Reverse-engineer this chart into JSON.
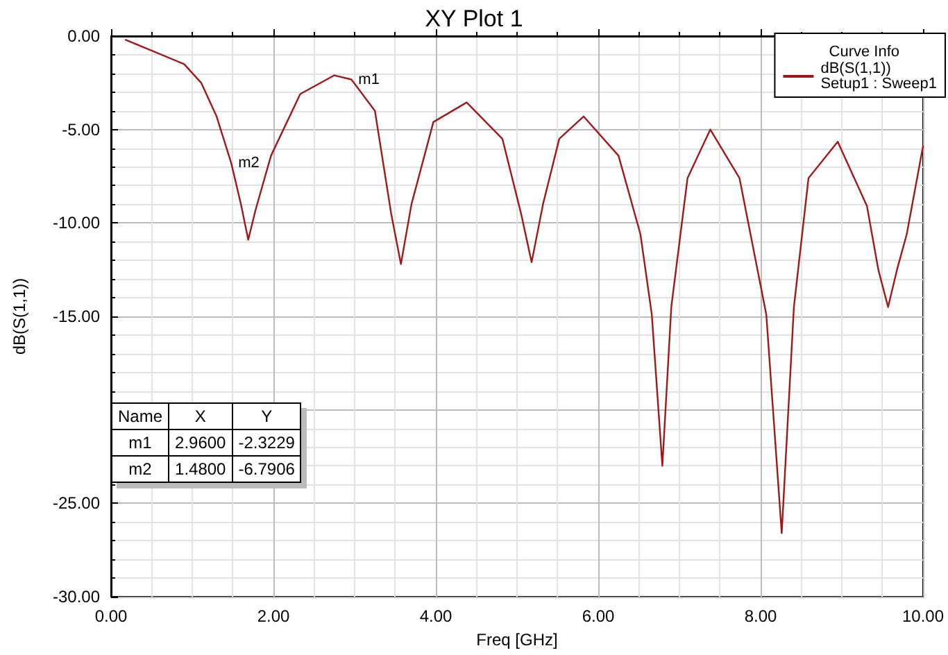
{
  "chart_data": {
    "type": "line",
    "title": "XY Plot 1",
    "xlabel": "Freq [GHz]",
    "ylabel": "dB(S(1,1))",
    "legend_title": "Curve Info",
    "legend": "top right",
    "grid": true,
    "marker": "none",
    "line_style": "solid",
    "xlim": [
      0,
      10
    ],
    "xticks": [
      {
        "value": 0,
        "label": "0.00"
      },
      {
        "value": 2,
        "label": "2.00"
      },
      {
        "value": 4,
        "label": "4.00"
      },
      {
        "value": 6,
        "label": "6.00"
      },
      {
        "value": 8,
        "label": "8.00"
      },
      {
        "value": 10,
        "label": "10.00"
      }
    ],
    "ylim": [
      -30,
      0
    ],
    "yticks": [
      {
        "value": -30,
        "label": "-30.00"
      },
      {
        "value": -25,
        "label": "-25.00"
      },
      {
        "value": -20,
        "label": null
      },
      {
        "value": -15,
        "label": "-15.00"
      },
      {
        "value": -10,
        "label": "-10.00"
      },
      {
        "value": -5,
        "label": "-5.00"
      },
      {
        "value": 0,
        "label": "0.00"
      }
    ],
    "series": [
      {
        "name": "dB(S(1,1))\nSetup1 : Sweep1",
        "color": "#a01818",
        "x": [
          0.18,
          0.9,
          1.11,
          1.3,
          1.48,
          1.6,
          1.69,
          1.78,
          1.97,
          2.33,
          2.75,
          2.96,
          3.25,
          3.45,
          3.57,
          3.7,
          3.97,
          4.38,
          4.82,
          5.05,
          5.18,
          5.32,
          5.52,
          5.82,
          6.25,
          6.52,
          6.66,
          6.79,
          6.9,
          7.1,
          7.38,
          7.74,
          8.07,
          8.26,
          8.41,
          8.59,
          8.95,
          9.31,
          9.45,
          9.57,
          9.68,
          9.8,
          10.0
        ],
        "values": [
          -0.2,
          -1.5,
          -2.5,
          -4.3,
          -6.79,
          -9.0,
          -10.9,
          -9.3,
          -6.4,
          -3.1,
          -2.1,
          -2.32,
          -4.0,
          -9.5,
          -12.2,
          -9.0,
          -4.6,
          -3.55,
          -5.5,
          -9.5,
          -12.1,
          -9.0,
          -5.5,
          -4.3,
          -6.4,
          -10.6,
          -14.9,
          -23.0,
          -14.5,
          -7.6,
          -5.0,
          -7.6,
          -14.9,
          -26.6,
          -14.5,
          -7.6,
          -5.65,
          -9.1,
          -12.5,
          -14.5,
          -12.5,
          -10.6,
          -5.9
        ]
      }
    ],
    "annotations": [
      {
        "text": "m1",
        "x": 2.96,
        "y": -2.3229
      },
      {
        "text": "m2",
        "x": 1.48,
        "y": -6.7906
      },
      "Name",
      "X",
      "Y",
      "m1",
      "2.9600",
      "-2.3229",
      "m2",
      "1.4800",
      "-6.7906"
    ]
  }
}
